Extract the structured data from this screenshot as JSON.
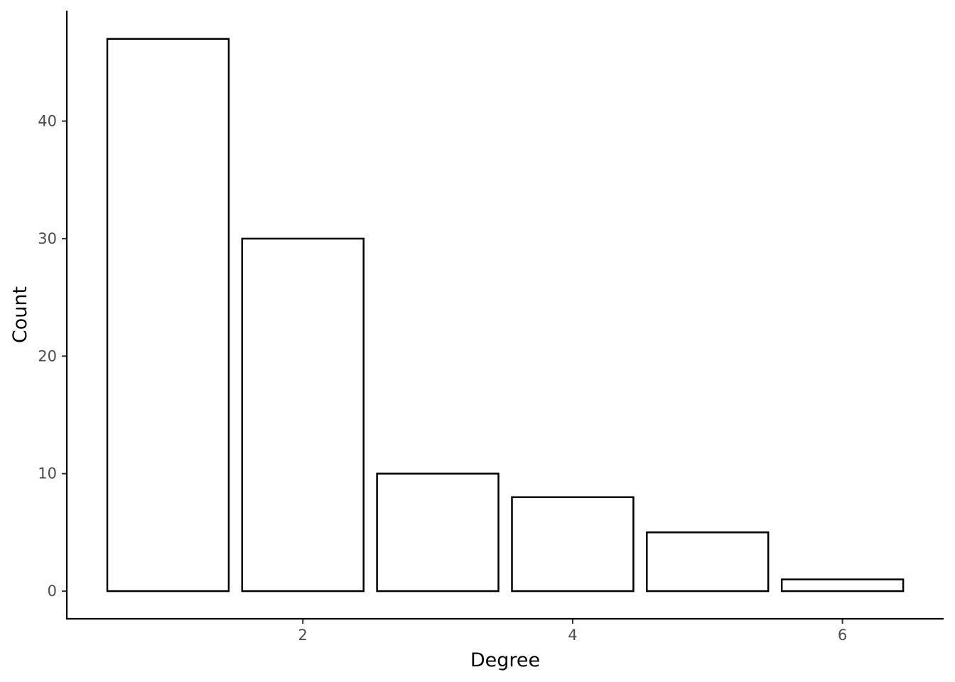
{
  "chart_data": {
    "type": "bar",
    "title": "",
    "xlabel": "Degree",
    "ylabel": "Count",
    "x": [
      1,
      2,
      3,
      4,
      5,
      6
    ],
    "values": [
      47,
      30,
      10,
      8,
      5,
      1
    ],
    "xlim": [
      0.25,
      6.75
    ],
    "ylim": [
      -2.35,
      49.4
    ],
    "xticks": [
      2,
      4,
      6
    ],
    "yticks": [
      0,
      10,
      20,
      30,
      40
    ],
    "grid": false,
    "legend": "none",
    "bar_fill": "#ffffff",
    "bar_outline": "#000000"
  }
}
